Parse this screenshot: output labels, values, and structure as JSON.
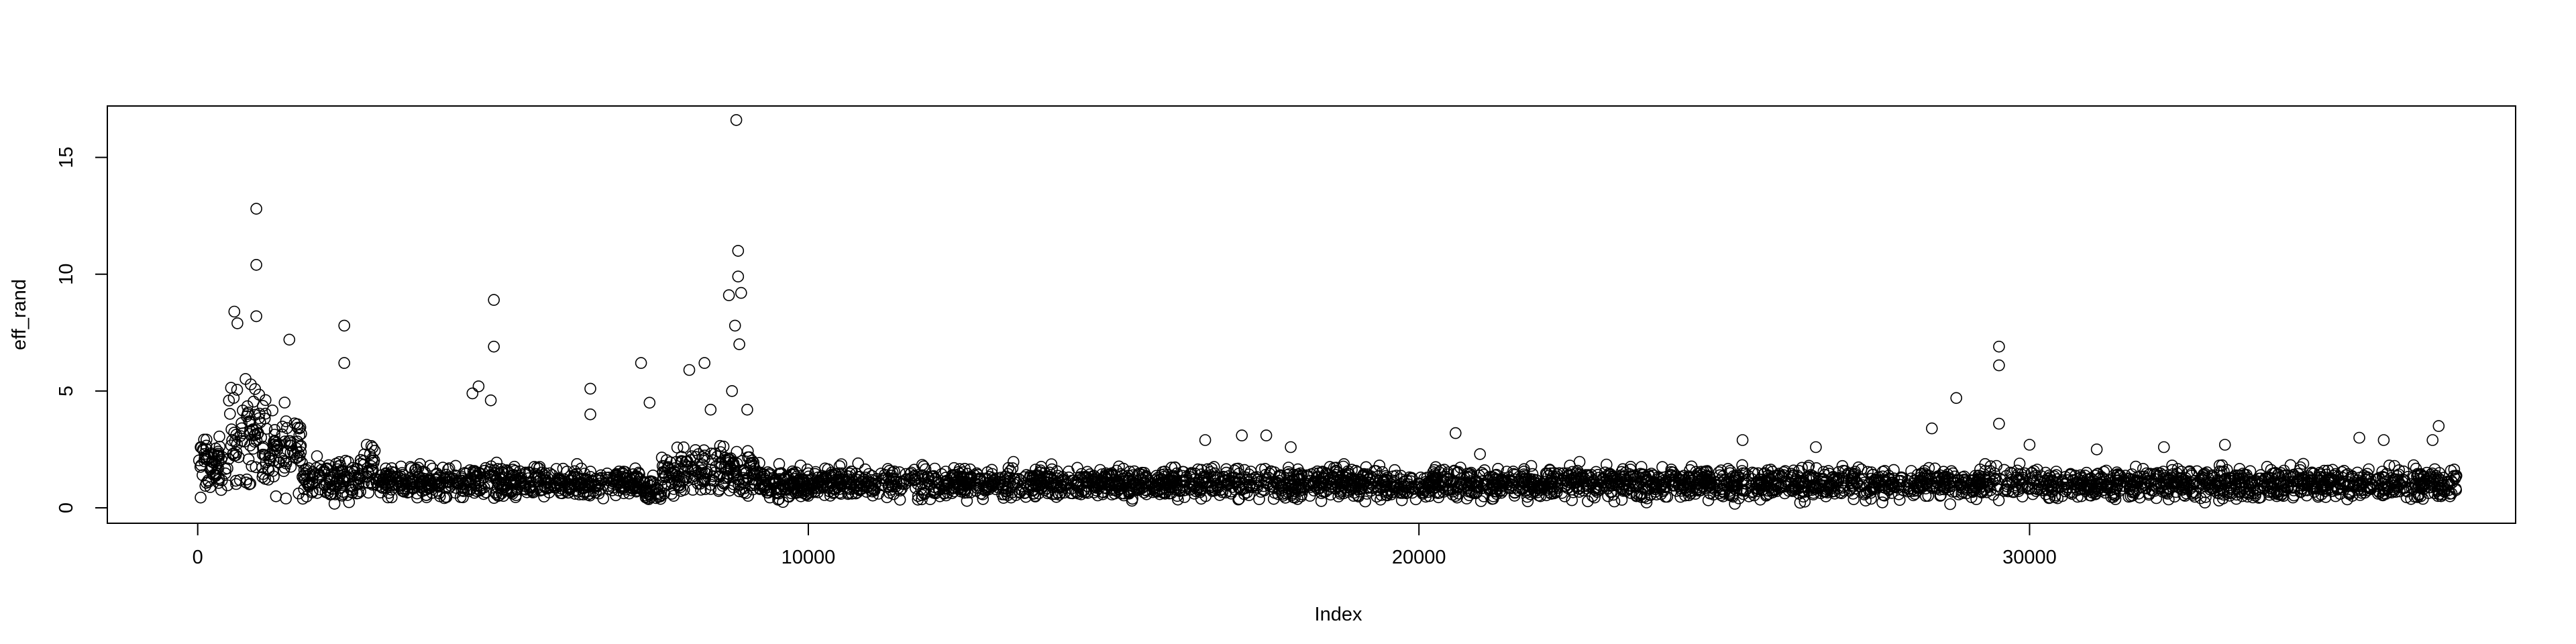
{
  "chart_data": {
    "type": "scatter",
    "title": "",
    "xlabel": "Index",
    "ylabel": "eff_rand",
    "xlim": [
      -1480,
      37960
    ],
    "ylim": [
      -0.66,
      17.2
    ],
    "x_ticks": [
      0,
      10000,
      20000,
      30000
    ],
    "x_tick_labels": [
      "0",
      "10000",
      "20000",
      "30000"
    ],
    "y_ticks": [
      0,
      5,
      10,
      15
    ],
    "y_tick_labels": [
      "0",
      "5",
      "10",
      "15"
    ],
    "grid": false,
    "legend": "none",
    "marker": "open-circle",
    "n_points_approx": 37000,
    "series": [
      {
        "points": [
          [
            960,
            12.8
          ],
          [
            960,
            10.4
          ],
          [
            960,
            8.2
          ],
          [
            600,
            8.4
          ],
          [
            650,
            7.9
          ],
          [
            1500,
            7.2
          ],
          [
            2400,
            7.8
          ],
          [
            2400,
            6.2
          ],
          [
            4850,
            8.9
          ],
          [
            4850,
            6.9
          ],
          [
            4800,
            4.6
          ],
          [
            4600,
            5.2
          ],
          [
            4500,
            4.9
          ],
          [
            6430,
            5.1
          ],
          [
            6430,
            4.0
          ],
          [
            7260,
            6.2
          ],
          [
            7400,
            4.5
          ],
          [
            8050,
            5.9
          ],
          [
            8300,
            6.2
          ],
          [
            8400,
            4.2
          ],
          [
            8700,
            9.1
          ],
          [
            8820,
            16.6
          ],
          [
            8850,
            11.0
          ],
          [
            8850,
            9.9
          ],
          [
            8900,
            9.2
          ],
          [
            8800,
            7.8
          ],
          [
            8870,
            7.0
          ],
          [
            8750,
            5.0
          ],
          [
            9000,
            4.2
          ],
          [
            16500,
            2.9
          ],
          [
            17100,
            3.1
          ],
          [
            17500,
            3.1
          ],
          [
            17900,
            2.6
          ],
          [
            20600,
            3.2
          ],
          [
            21000,
            2.3
          ],
          [
            25300,
            2.9
          ],
          [
            26500,
            2.6
          ],
          [
            28400,
            3.4
          ],
          [
            28800,
            4.7
          ],
          [
            29500,
            6.9
          ],
          [
            29500,
            6.1
          ],
          [
            29500,
            3.6
          ],
          [
            30000,
            2.7
          ],
          [
            31100,
            2.5
          ],
          [
            32200,
            2.6
          ],
          [
            33200,
            2.7
          ],
          [
            35400,
            3.0
          ],
          [
            35800,
            2.9
          ],
          [
            36700,
            3.5
          ],
          [
            36600,
            2.9
          ]
        ]
      }
    ],
    "density_bands": [
      {
        "x": [
          0,
          500
        ],
        "low": 0.0,
        "high": 3.5
      },
      {
        "x": [
          500,
          950
        ],
        "low": 0.0,
        "high": 6.5
      },
      {
        "x": [
          950,
          1150
        ],
        "low": 0.0,
        "high": 6.0
      },
      {
        "x": [
          1150,
          1700
        ],
        "low": 0.0,
        "high": 5.0
      },
      {
        "x": [
          1700,
          2700
        ],
        "low": 0.0,
        "high": 2.5
      },
      {
        "x": [
          2700,
          2900
        ],
        "low": 0.0,
        "high": 3.3
      },
      {
        "x": [
          2900,
          4500
        ],
        "low": 0.2,
        "high": 2.0
      },
      {
        "x": [
          4500,
          5000
        ],
        "low": 0.0,
        "high": 2.2
      },
      {
        "x": [
          5000,
          7300
        ],
        "low": 0.1,
        "high": 2.0
      },
      {
        "x": [
          7300,
          7600
        ],
        "low": 0.0,
        "high": 1.5
      },
      {
        "x": [
          7600,
          9200
        ],
        "low": 0.1,
        "high": 3.0
      },
      {
        "x": [
          9200,
          37000
        ],
        "low": 0.1,
        "high": 2.0
      }
    ]
  }
}
